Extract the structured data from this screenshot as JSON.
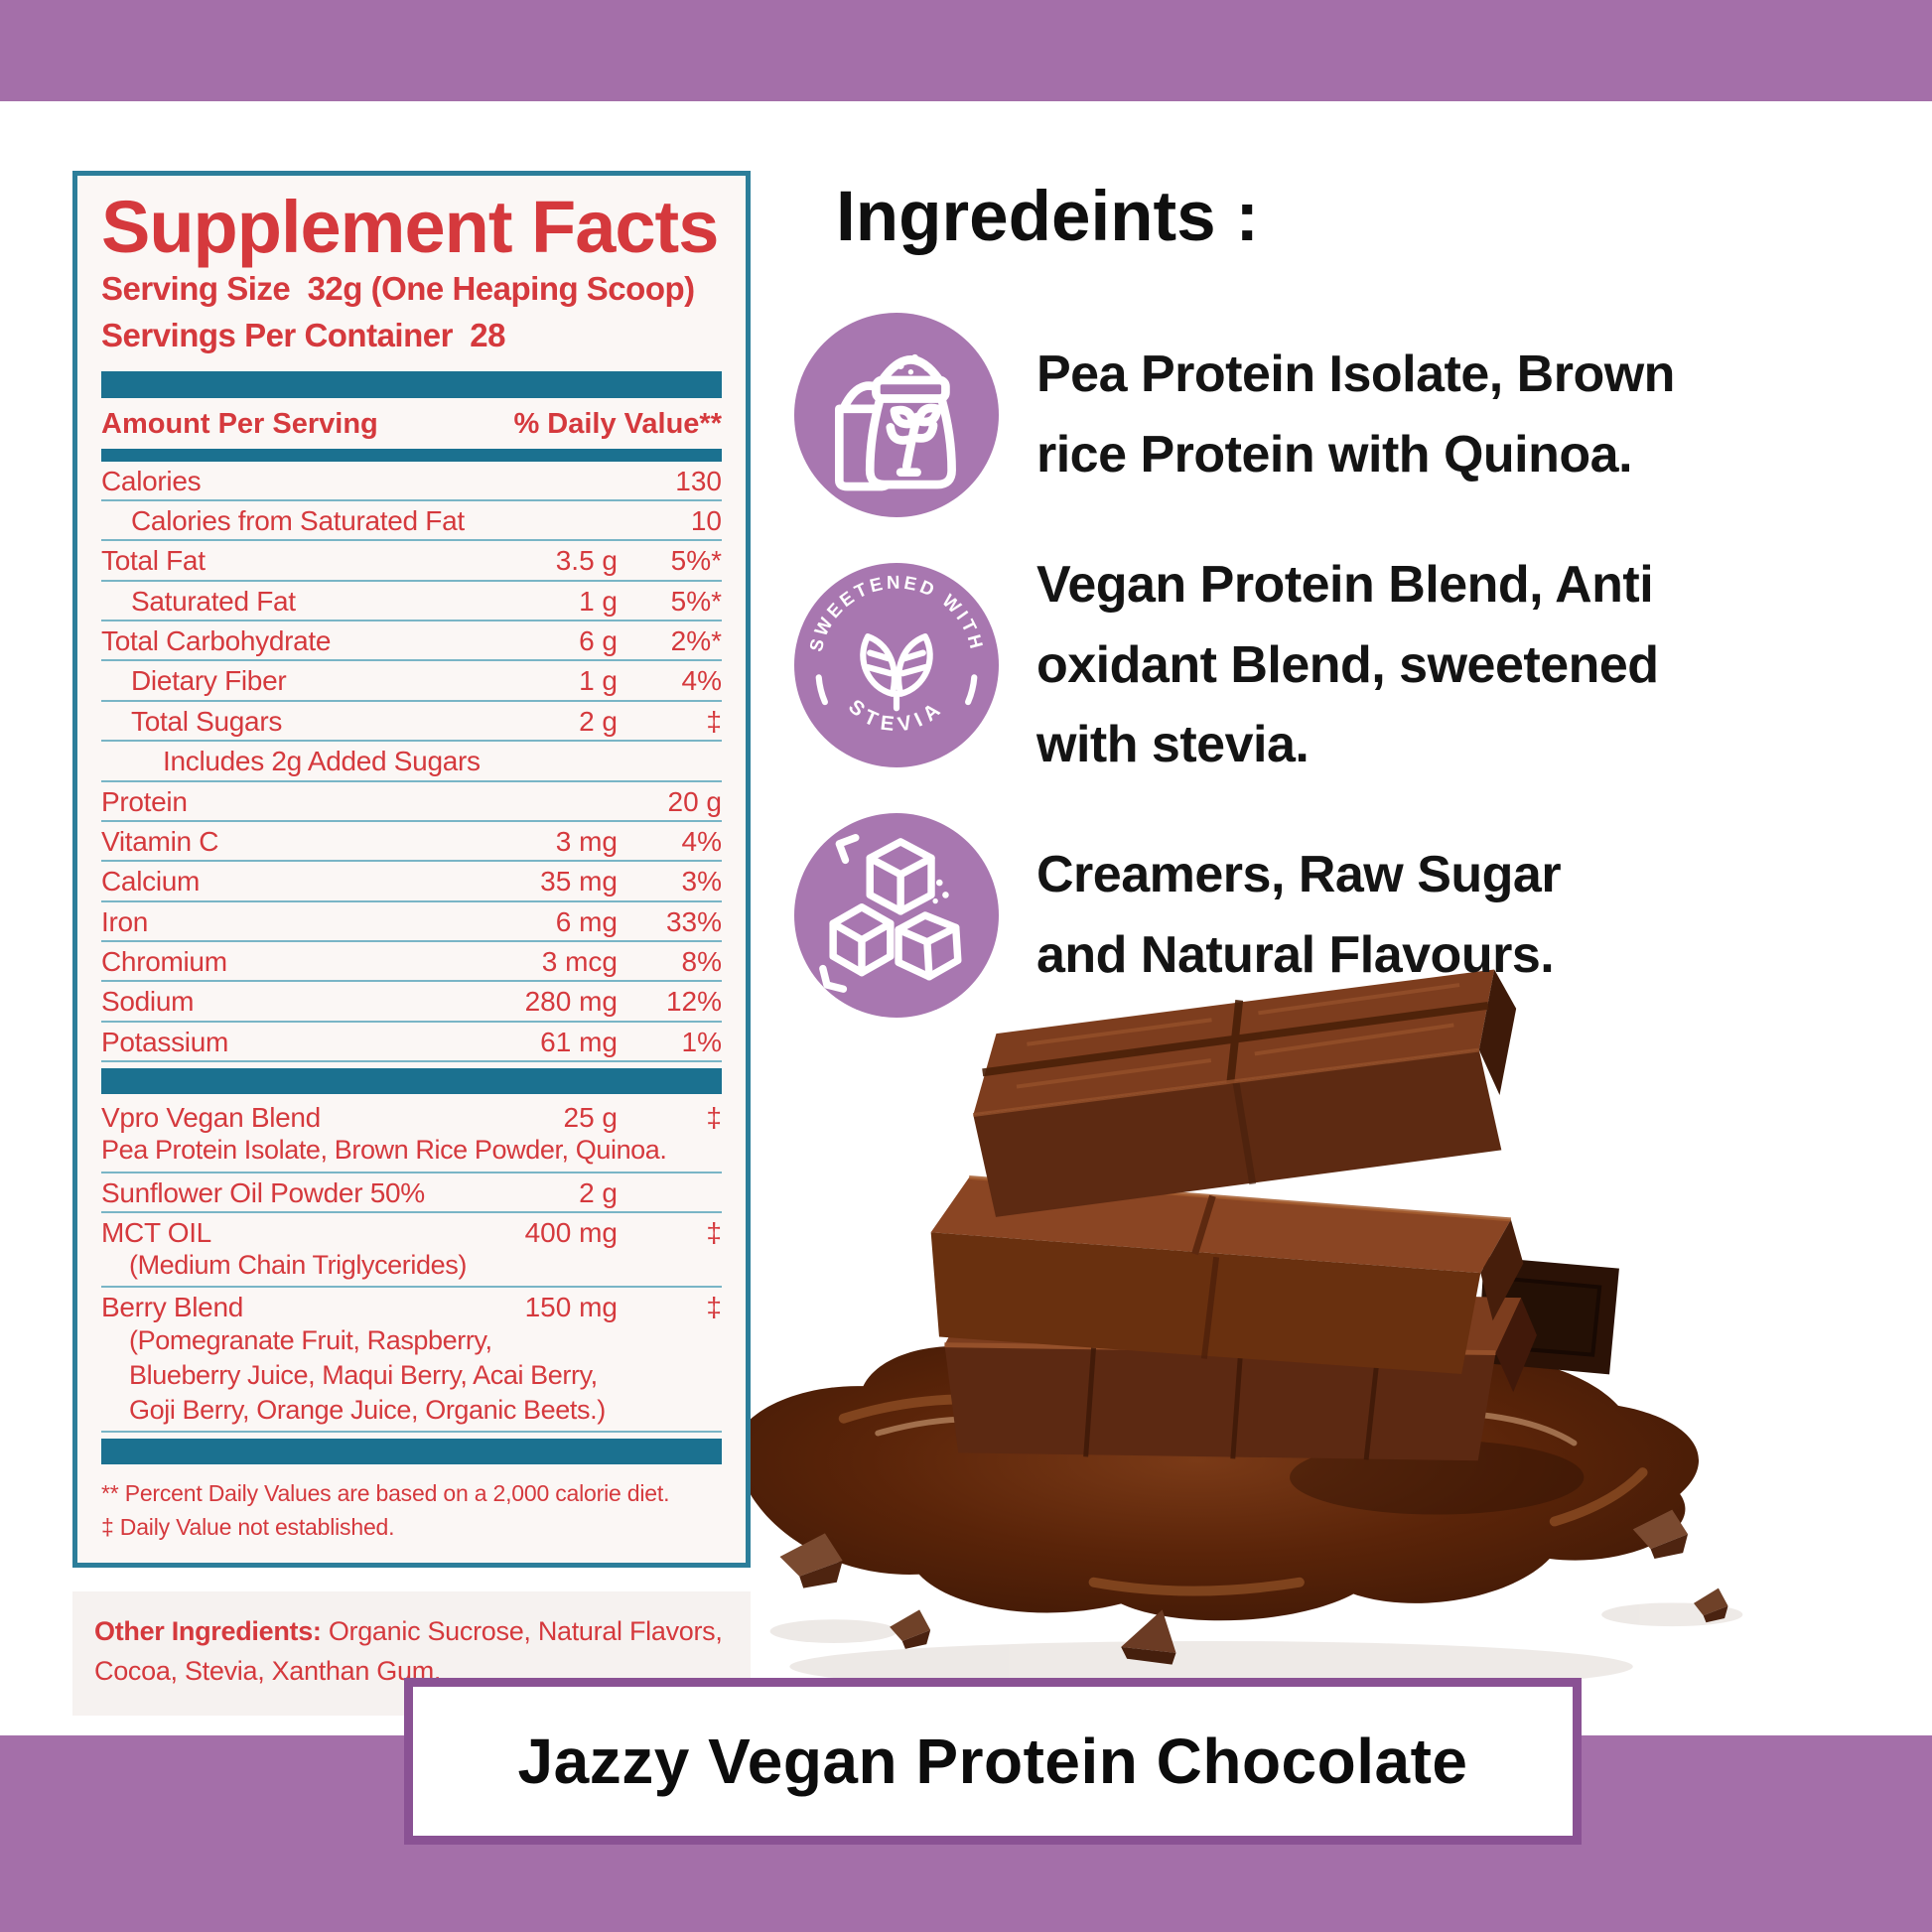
{
  "colors": {
    "accent_red": "#d5393d",
    "teal_bar": "#1b7190",
    "teal_border": "#2c7e9a",
    "divider_teal": "#79b5c6",
    "purple_band": "#a46fa9",
    "purple_badge": "#a877b0",
    "footer_border": "#8a5294",
    "panel_background": "#fbf7f5",
    "chocolate_dark": "#4a1d08",
    "chocolate_mid": "#6b3215",
    "chocolate_light": "#8a4523"
  },
  "supplement_facts": {
    "title": "Supplement Facts",
    "serving_size": "Serving Size  32g (One Heaping Scoop)",
    "servings_per_container": "Servings Per Container  28",
    "header": {
      "left": "Amount Per Serving",
      "right": "% Daily Value**"
    },
    "rows": [
      {
        "name": "Calories",
        "amount": "",
        "dv": "130"
      },
      {
        "name": "Calories from Saturated Fat",
        "indent": 1,
        "amount": "",
        "dv": "10"
      },
      {
        "name": "Total Fat",
        "amount": "3.5 g",
        "dv": "5%*"
      },
      {
        "name": "Saturated Fat",
        "indent": 1,
        "amount": "1 g",
        "dv": "5%*"
      },
      {
        "name": "Total Carbohydrate",
        "amount": "6 g",
        "dv": "2%*"
      },
      {
        "name": "Dietary Fiber",
        "indent": 1,
        "amount": "1 g",
        "dv": "4%"
      },
      {
        "name": "Total Sugars",
        "indent": 1,
        "amount": "2 g",
        "dv": "‡"
      },
      {
        "name": "Includes 2g Added Sugars",
        "indent": 2,
        "amount": "",
        "dv": ""
      },
      {
        "name": "Protein",
        "amount": "",
        "dv": "20 g"
      },
      {
        "name": "Vitamin C",
        "amount": "3 mg",
        "dv": "4%"
      },
      {
        "name": "Calcium",
        "amount": "35 mg",
        "dv": "3%"
      },
      {
        "name": "Iron",
        "amount": "6 mg",
        "dv": "33%"
      },
      {
        "name": "Chromium",
        "amount": "3 mcg",
        "dv": "8%"
      },
      {
        "name": "Sodium",
        "amount": "280 mg",
        "dv": "12%"
      },
      {
        "name": "Potassium",
        "amount": "61 mg",
        "dv": "1%"
      },
      {
        "type": "bar"
      },
      {
        "name": "Vpro Vegan Blend",
        "amount": "25 g",
        "dv": "‡",
        "subindent": 0,
        "sublines": [
          "Pea Protein Isolate, Brown Rice Powder, Quinoa."
        ]
      },
      {
        "name": "Sunflower Oil Powder 50%",
        "amount": "2 g",
        "dv": ""
      },
      {
        "name": "MCT OIL",
        "amount": "400 mg",
        "dv": "‡",
        "subindent": 1,
        "sublines": [
          "(Medium Chain Triglycerides)"
        ]
      },
      {
        "name": "Berry Blend",
        "amount": "150 mg",
        "dv": "‡",
        "subindent": 1,
        "sublines": [
          "(Pomegranate Fruit, Raspberry,",
          "Blueberry Juice, Maqui Berry, Acai Berry,",
          "Goji Berry, Orange Juice, Organic Beets.)"
        ]
      },
      {
        "type": "bar"
      }
    ],
    "footnotes": "** Percent Daily Values are based on a 2,000 calorie diet.\n‡ Daily Value not established.",
    "other_ingredients_label": "Other Ingredients:",
    "other_ingredients_text": " Organic Sucrose, Natural Flavors, Cocoa, Stevia, Xanthan Gum."
  },
  "ingredients": {
    "heading": "Ingredeints :",
    "items": [
      {
        "icon": "flour-sack-icon",
        "text": "Pea Protein Isolate, Brown\nrice Protein with Quinoa."
      },
      {
        "icon": "stevia-badge-icon",
        "badge_top": "SWEETENED WITH",
        "badge_bottom": "STEVIA",
        "text": "Vegan Protein Blend, Anti\noxidant Blend, sweetened\nwith stevia."
      },
      {
        "icon": "sugar-cubes-icon",
        "text": "Creamers, Raw Sugar\nand Natural Flavours."
      }
    ]
  },
  "hero": {
    "name": "chocolate-stack-image"
  },
  "banner": {
    "title": "Jazzy Vegan Protein Chocolate"
  }
}
